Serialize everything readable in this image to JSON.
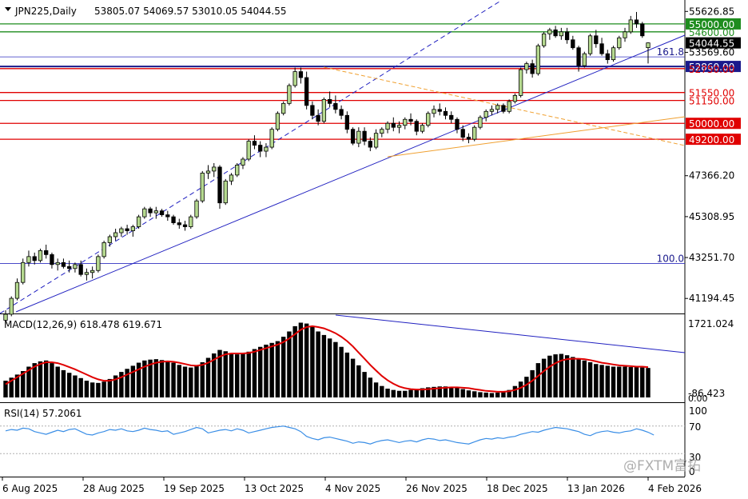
{
  "header": {
    "symbol_timeframe": "JPN225,Daily",
    "ohlc": "53805.07 54069.57 53010.05 54044.55"
  },
  "price_axis": {
    "ticks": [
      "55626.85",
      "53569.60",
      "47366.20",
      "45308.95",
      "43251.70",
      "41194.45"
    ],
    "level_labels": [
      {
        "text": "55000.00",
        "color": "#1e8c1e",
        "boxed": true,
        "price": 55000
      },
      {
        "text": "54600.00",
        "color": "#1e8c1e",
        "boxed": false,
        "price": 54600
      },
      {
        "text": "54044.55",
        "color": "#000000",
        "boxed": true,
        "price": 54044.55
      },
      {
        "text": "52860.00",
        "color": "#1a1a8c",
        "boxed": true,
        "price": 52860
      },
      {
        "text": "52750.00",
        "color": "#e00000",
        "boxed": false,
        "price": 52750
      },
      {
        "text": "51550.00",
        "color": "#e00000",
        "boxed": false,
        "price": 51550
      },
      {
        "text": "51150.00",
        "color": "#e00000",
        "boxed": false,
        "price": 51150
      },
      {
        "text": "50000.00",
        "color": "#e00000",
        "boxed": true,
        "price": 50000
      },
      {
        "text": "49200.00",
        "color": "#e00000",
        "boxed": true,
        "price": 49200
      }
    ]
  },
  "fib_labels": [
    {
      "text": "161.8",
      "price": 53340
    },
    {
      "text": "100.0",
      "price": 42950
    }
  ],
  "macd": {
    "label": "MACD(12,26,9) 618.478 619.671",
    "ticks": [
      "1721.024",
      "-86.423",
      "0.00"
    ]
  },
  "rsi": {
    "label": "RSI(14) 57.2061",
    "ticks": [
      "100",
      "70",
      "30",
      "0"
    ],
    "levels": [
      70,
      30
    ]
  },
  "x_axis": {
    "labels": [
      "6 Aug 2025",
      "28 Aug 2025",
      "19 Sep 2025",
      "13 Oct 2025",
      "4 Nov 2025",
      "26 Nov 2025",
      "18 Dec 2025",
      "13 Jan 2026",
      "4 Feb 2026"
    ]
  },
  "watermark": "@FXTM富拓",
  "colors": {
    "up_candle": "#b5d98f",
    "down_candle": "#000000",
    "support_lines": "#e00000",
    "resistance_lines": "#1e8c1e",
    "trendline": "#2020c0",
    "fib_line": "#f0a030",
    "macd_signal": "#e00000",
    "rsi_line": "#3a8ee6"
  },
  "chart_data": {
    "type": "candlestick",
    "title": "JPN225,Daily",
    "ylim": [
      40600,
      56000
    ],
    "candles": [
      [
        40100,
        40600,
        39900,
        40400
      ],
      [
        40400,
        41300,
        40300,
        41200
      ],
      [
        41200,
        42200,
        41100,
        42000
      ],
      [
        42000,
        43200,
        41900,
        43000
      ],
      [
        43000,
        43600,
        42800,
        43300
      ],
      [
        43300,
        43500,
        42900,
        43100
      ],
      [
        43100,
        43700,
        43000,
        43600
      ],
      [
        43600,
        43900,
        43200,
        43400
      ],
      [
        43400,
        43500,
        42700,
        42900
      ],
      [
        42900,
        43200,
        42600,
        43000
      ],
      [
        43000,
        43200,
        42700,
        42800
      ],
      [
        42800,
        43100,
        42500,
        42700
      ],
      [
        42700,
        43000,
        42500,
        42900
      ],
      [
        42900,
        43100,
        42300,
        42400
      ],
      [
        42400,
        42700,
        42100,
        42500
      ],
      [
        42500,
        42800,
        42200,
        42600
      ],
      [
        42600,
        43400,
        42500,
        43300
      ],
      [
        43300,
        44100,
        43200,
        44000
      ],
      [
        44000,
        44400,
        43800,
        44300
      ],
      [
        44300,
        44700,
        44100,
        44500
      ],
      [
        44500,
        44800,
        44300,
        44700
      ],
      [
        44700,
        44900,
        44400,
        44600
      ],
      [
        44600,
        44900,
        44300,
        44800
      ],
      [
        44800,
        45400,
        44700,
        45300
      ],
      [
        45300,
        45800,
        45200,
        45700
      ],
      [
        45700,
        45800,
        45300,
        45500
      ],
      [
        45500,
        45800,
        45200,
        45600
      ],
      [
        45600,
        45700,
        45300,
        45400
      ],
      [
        45400,
        45600,
        45100,
        45300
      ],
      [
        45300,
        45400,
        44900,
        45000
      ],
      [
        45000,
        45200,
        44700,
        44900
      ],
      [
        44900,
        45100,
        44600,
        44800
      ],
      [
        44800,
        45400,
        44700,
        45300
      ],
      [
        45300,
        46200,
        45200,
        46100
      ],
      [
        46100,
        47600,
        46000,
        47500
      ],
      [
        47500,
        47900,
        47200,
        47600
      ],
      [
        47600,
        48000,
        47300,
        47800
      ],
      [
        47800,
        47900,
        45700,
        46000
      ],
      [
        46000,
        47200,
        45900,
        47100
      ],
      [
        47100,
        47500,
        46900,
        47400
      ],
      [
        47400,
        48000,
        47300,
        47900
      ],
      [
        47900,
        48300,
        47700,
        48200
      ],
      [
        48200,
        49200,
        48100,
        49100
      ],
      [
        49100,
        49400,
        48700,
        48900
      ],
      [
        48900,
        49100,
        48300,
        48600
      ],
      [
        48600,
        49000,
        48300,
        48800
      ],
      [
        48800,
        49800,
        48700,
        49700
      ],
      [
        49700,
        50600,
        49600,
        50500
      ],
      [
        50500,
        51100,
        50400,
        51000
      ],
      [
        51000,
        52000,
        50900,
        51900
      ],
      [
        51900,
        52800,
        51800,
        52600
      ],
      [
        52600,
        52800,
        52000,
        52300
      ],
      [
        52300,
        52600,
        50700,
        50900
      ],
      [
        50900,
        51100,
        50200,
        50400
      ],
      [
        50400,
        50700,
        49900,
        50100
      ],
      [
        50100,
        51300,
        50000,
        51200
      ],
      [
        51200,
        51600,
        50800,
        51000
      ],
      [
        51000,
        51400,
        50500,
        50700
      ],
      [
        50700,
        50900,
        50200,
        50400
      ],
      [
        50400,
        50600,
        49500,
        49700
      ],
      [
        49700,
        49800,
        48900,
        49000
      ],
      [
        49000,
        49800,
        48800,
        49600
      ],
      [
        49600,
        49800,
        48900,
        49100
      ],
      [
        49100,
        49300,
        48600,
        48800
      ],
      [
        48800,
        49700,
        48700,
        49500
      ],
      [
        49500,
        49800,
        49300,
        49700
      ],
      [
        49700,
        50100,
        49500,
        50000
      ],
      [
        50000,
        50300,
        49600,
        49800
      ],
      [
        49800,
        50100,
        49500,
        49900
      ],
      [
        49900,
        50300,
        49700,
        50200
      ],
      [
        50200,
        50500,
        49900,
        50100
      ],
      [
        50100,
        50200,
        49400,
        49600
      ],
      [
        49600,
        50000,
        49500,
        49900
      ],
      [
        49900,
        50600,
        49800,
        50500
      ],
      [
        50500,
        50900,
        50300,
        50700
      ],
      [
        50700,
        51000,
        50400,
        50600
      ],
      [
        50600,
        50800,
        50200,
        50400
      ],
      [
        50400,
        50600,
        50000,
        50200
      ],
      [
        50200,
        50300,
        49500,
        49700
      ],
      [
        49700,
        49900,
        49100,
        49300
      ],
      [
        49300,
        49500,
        49000,
        49200
      ],
      [
        49200,
        49900,
        49100,
        49800
      ],
      [
        49800,
        50400,
        49700,
        50300
      ],
      [
        50300,
        50700,
        50100,
        50600
      ],
      [
        50600,
        50900,
        50400,
        50700
      ],
      [
        50700,
        51000,
        50500,
        50900
      ],
      [
        50900,
        51000,
        50500,
        50600
      ],
      [
        50600,
        51200,
        50500,
        51100
      ],
      [
        51100,
        51500,
        51000,
        51400
      ],
      [
        51400,
        52800,
        51300,
        52700
      ],
      [
        52700,
        53100,
        52500,
        53000
      ],
      [
        53000,
        53200,
        52300,
        52500
      ],
      [
        52500,
        54000,
        52400,
        53900
      ],
      [
        53900,
        54600,
        53800,
        54500
      ],
      [
        54500,
        54800,
        54200,
        54700
      ],
      [
        54700,
        54900,
        54300,
        54400
      ],
      [
        54400,
        54800,
        54200,
        54600
      ],
      [
        54600,
        54800,
        54000,
        54200
      ],
      [
        54200,
        54400,
        53700,
        53800
      ],
      [
        53800,
        53900,
        52600,
        52900
      ],
      [
        52900,
        53600,
        52800,
        53500
      ],
      [
        53500,
        54500,
        53400,
        54400
      ],
      [
        54400,
        54700,
        53800,
        54000
      ],
      [
        54000,
        54300,
        53400,
        53500
      ],
      [
        53500,
        53700,
        53000,
        53200
      ],
      [
        53200,
        53900,
        53100,
        53800
      ],
      [
        53800,
        54400,
        53700,
        54300
      ],
      [
        54300,
        54800,
        54100,
        54600
      ],
      [
        54600,
        55400,
        54500,
        55200
      ],
      [
        55200,
        55600,
        54800,
        55000
      ],
      [
        55000,
        55100,
        54300,
        54400
      ],
      [
        53805.07,
        54069.57,
        53010.05,
        54044.55
      ]
    ],
    "macd_histogram": [
      380,
      450,
      520,
      600,
      700,
      780,
      820,
      840,
      780,
      700,
      620,
      560,
      500,
      440,
      380,
      340,
      330,
      360,
      420,
      500,
      580,
      650,
      720,
      790,
      840,
      860,
      870,
      850,
      830,
      790,
      740,
      700,
      680,
      720,
      800,
      900,
      1000,
      1080,
      1050,
      1000,
      980,
      1000,
      1040,
      1100,
      1150,
      1200,
      1240,
      1280,
      1380,
      1500,
      1620,
      1700,
      1680,
      1600,
      1500,
      1420,
      1340,
      1260,
      1150,
      1020,
      880,
      730,
      580,
      450,
      340,
      260,
      200,
      170,
      150,
      150,
      170,
      190,
      210,
      230,
      240,
      250,
      250,
      240,
      220,
      190,
      160,
      140,
      120,
      110,
      100,
      110,
      130,
      170,
      260,
      360,
      470,
      620,
      780,
      880,
      950,
      980,
      990,
      960,
      920,
      880,
      840,
      800,
      760,
      740,
      720,
      700,
      700,
      700,
      690,
      690,
      680,
      670
    ],
    "macd_signal": [
      300,
      380,
      460,
      540,
      620,
      700,
      760,
      800,
      800,
      780,
      740,
      690,
      640,
      580,
      520,
      460,
      410,
      380,
      380,
      410,
      460,
      520,
      580,
      640,
      700,
      750,
      790,
      810,
      820,
      810,
      790,
      760,
      730,
      720,
      740,
      790,
      860,
      930,
      980,
      1000,
      1000,
      1000,
      1010,
      1040,
      1080,
      1120,
      1160,
      1200,
      1260,
      1340,
      1440,
      1540,
      1600,
      1620,
      1600,
      1570,
      1520,
      1460,
      1380,
      1280,
      1160,
      1020,
      880,
      740,
      610,
      490,
      390,
      310,
      250,
      210,
      190,
      180,
      180,
      190,
      200,
      210,
      220,
      230,
      230,
      220,
      210,
      190,
      170,
      150,
      140,
      130,
      130,
      140,
      170,
      220,
      290,
      380,
      490,
      600,
      700,
      780,
      840,
      870,
      880,
      880,
      870,
      850,
      820,
      790,
      770,
      750,
      730,
      720,
      710,
      700,
      700,
      690
    ],
    "rsi": [
      63,
      65,
      64,
      67,
      66,
      62,
      60,
      58,
      61,
      64,
      62,
      65,
      66,
      62,
      58,
      57,
      60,
      62,
      65,
      64,
      66,
      63,
      62,
      64,
      67,
      65,
      64,
      62,
      63,
      58,
      60,
      62,
      65,
      68,
      66,
      60,
      62,
      64,
      65,
      63,
      66,
      64,
      60,
      62,
      64,
      66,
      68,
      69,
      70,
      68,
      66,
      62,
      55,
      52,
      50,
      53,
      54,
      52,
      50,
      48,
      45,
      47,
      46,
      44,
      47,
      49,
      50,
      48,
      46,
      48,
      49,
      47,
      50,
      52,
      51,
      49,
      50,
      48,
      46,
      45,
      44,
      47,
      50,
      52,
      51,
      53,
      52,
      54,
      55,
      58,
      60,
      62,
      61,
      64,
      66,
      68,
      67,
      66,
      64,
      62,
      58,
      56,
      60,
      62,
      63,
      61,
      60,
      62,
      63,
      66,
      64,
      61,
      57
    ]
  }
}
